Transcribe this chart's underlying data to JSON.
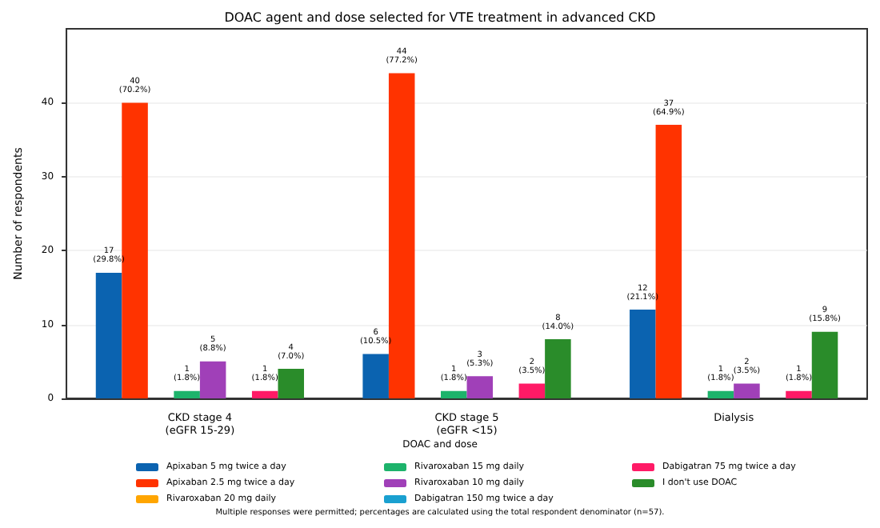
{
  "chart_data": {
    "type": "bar",
    "title": "DOAC agent and dose selected for VTE treatment in advanced CKD",
    "xlabel": null,
    "ylabel": "Number of respondents",
    "legend_title": "DOAC and dose",
    "categories": [
      "CKD stage 4\n(eGFR 15-29)",
      "CKD stage 5\n(eGFR <15)",
      "Dialysis"
    ],
    "series": [
      {
        "name": "Apixaban 5 mg twice a day",
        "color": "#0b63b0",
        "values": [
          17,
          6,
          12
        ],
        "value_labels": [
          "17\n(29.8%)",
          "6\n(10.5%)",
          "12\n(21.1%)"
        ]
      },
      {
        "name": "Apixaban 2.5 mg twice a day",
        "color": "#ff3300",
        "values": [
          40,
          44,
          37
        ],
        "value_labels": [
          "40\n(70.2%)",
          "44\n(77.2%)",
          "37\n(64.9%)"
        ]
      },
      {
        "name": "Rivaroxaban 20 mg daily",
        "color": "#ffa500",
        "values": [
          0,
          0,
          0
        ],
        "value_labels": [
          null,
          null,
          null
        ]
      },
      {
        "name": "Rivaroxaban 15 mg daily",
        "color": "#1db36b",
        "values": [
          1,
          1,
          1
        ],
        "value_labels": [
          "1\n(1.8%)",
          "1\n(1.8%)",
          "1\n(1.8%)"
        ]
      },
      {
        "name": "Rivaroxaban 10 mg daily",
        "color": "#a040b8",
        "values": [
          5,
          3,
          2
        ],
        "value_labels": [
          "5\n(8.8%)",
          "3\n(5.3%)",
          "2\n(3.5%)"
        ]
      },
      {
        "name": "Dabigatran 150 mg twice a day",
        "color": "#1aa0d0",
        "values": [
          0,
          0,
          0
        ],
        "value_labels": [
          null,
          null,
          null
        ]
      },
      {
        "name": "Dabigatran 75 mg twice a day",
        "color": "#ff1a66",
        "values": [
          1,
          2,
          1
        ],
        "value_labels": [
          "1\n(1.8%)",
          "2\n(3.5%)",
          "1\n(1.8%)"
        ]
      },
      {
        "name": "I don't use DOAC",
        "color": "#2a8c2a",
        "values": [
          4,
          8,
          9
        ],
        "value_labels": [
          "4\n(7.0%)",
          "8\n(14.0%)",
          "9\n(15.8%)"
        ]
      }
    ],
    "ylim": [
      0,
      50
    ],
    "yticks": [
      0,
      10,
      20,
      30,
      40
    ],
    "grid": "y",
    "legend": "bottom",
    "annotations": [
      "Multiple responses were permitted; percentages are calculated using the total respondent denominator (n=57)."
    ]
  }
}
